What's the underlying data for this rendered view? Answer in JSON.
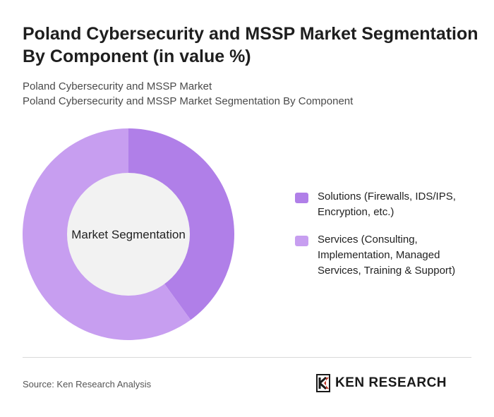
{
  "header": {
    "title": "Poland Cybersecurity and MSSP Market Segmentation By Component (in value %)",
    "subtitle_line1": "Poland Cybersecurity and MSSP Market",
    "subtitle_line2": "Poland Cybersecurity and MSSP Market Segmentation By Component"
  },
  "chart_data": {
    "type": "pie",
    "donut": true,
    "center_label": "Market Segmentation",
    "categories": [
      "Solutions (Firewalls, IDS/IPS, Encryption, etc.)",
      "Services (Consulting, Implementation, Managed Services, Training & Support)"
    ],
    "values": [
      40,
      60
    ],
    "colors": [
      "#b07fe8",
      "#c79ef0"
    ],
    "legend_position": "right"
  },
  "legend": {
    "items": [
      {
        "label": "Solutions (Firewalls, IDS/IPS, Encryption, etc.)",
        "color": "#b07fe8"
      },
      {
        "label": "Services (Consulting, Implementation, Managed Services, Training & Support)",
        "color": "#c79ef0"
      }
    ]
  },
  "footer": {
    "source": "Source: Ken Research Analysis",
    "logo_text": "KEN RESEARCH",
    "logo_mark": "K"
  }
}
